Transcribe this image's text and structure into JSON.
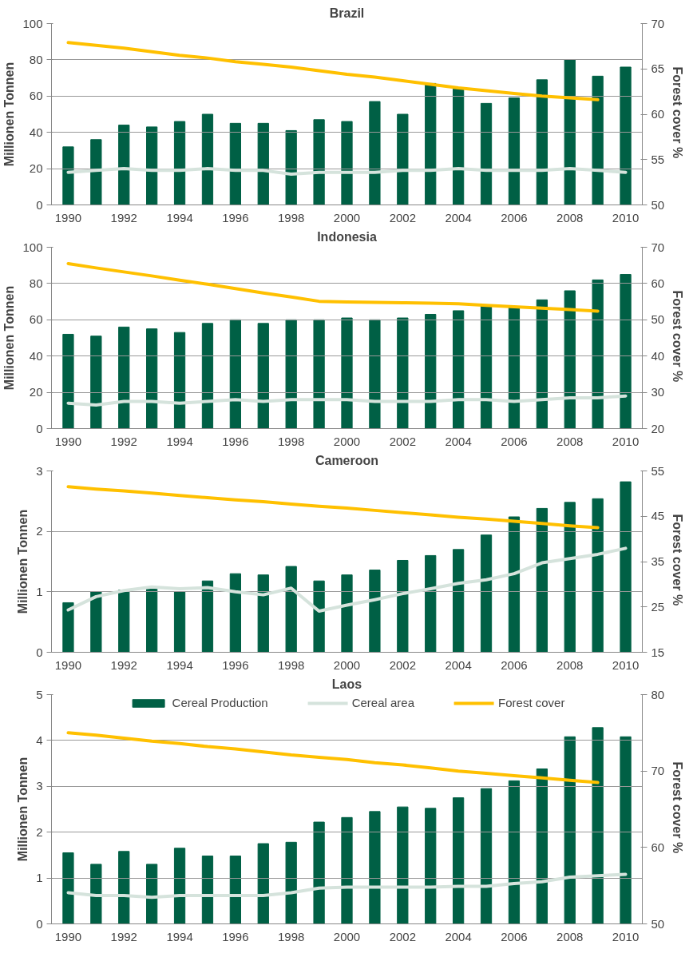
{
  "chart_data": [
    {
      "type": "bar",
      "title": "Brazil",
      "ylabel": "Millionen Tonnen",
      "y2label": "Forest  cover %",
      "categories": [
        "1990",
        null,
        "1992",
        null,
        "1994",
        null,
        "1996",
        null,
        "1998",
        null,
        "2000",
        null,
        "2002",
        null,
        "2004",
        null,
        "2006",
        null,
        "2008",
        null,
        "2010"
      ],
      "series": [
        {
          "color": "#006045",
          "values": [
            32,
            36,
            44,
            43,
            46,
            50,
            45,
            45,
            41,
            47,
            46,
            57,
            50,
            67,
            64,
            56,
            59,
            69,
            80,
            71,
            76
          ]
        },
        {
          "type": "line",
          "color": "#d5e3dc",
          "values": [
            18,
            19,
            20,
            19,
            19,
            20,
            19,
            19,
            17,
            18,
            18,
            18,
            19,
            19,
            20,
            19,
            19,
            19,
            20,
            19,
            18
          ]
        },
        {
          "type": "line",
          "color": "#ffc000",
          "axis": "y2",
          "values": [
            67.9,
            67.6,
            67.3,
            66.9,
            66.5,
            66.2,
            65.8,
            65.5,
            65.2,
            64.8,
            64.4,
            64.1,
            63.7,
            63.3,
            62.9,
            62.6,
            62.3,
            62.0,
            61.8,
            61.6,
            null
          ]
        }
      ],
      "ylim": [
        0,
        100
      ],
      "yticks": [
        0,
        20,
        40,
        60,
        80,
        100
      ],
      "y2lim": [
        50,
        70
      ],
      "y2ticks": [
        50,
        55,
        60,
        65,
        70
      ],
      "grid": "y",
      "legend": false
    },
    {
      "type": "bar",
      "title": "Indonesia",
      "ylabel": "Millionen Tonnen",
      "y2label": "Forest  cover %",
      "categories": [
        "1990",
        null,
        "1992",
        null,
        "1994",
        null,
        "1996",
        null,
        "1998",
        null,
        "2000",
        null,
        "2002",
        null,
        "2004",
        null,
        "2006",
        null,
        "2008",
        null,
        "2010"
      ],
      "series": [
        {
          "color": "#006045",
          "values": [
            52,
            51,
            56,
            55,
            53,
            58,
            60,
            58,
            60,
            60,
            61,
            60,
            61,
            63,
            65,
            68,
            67,
            71,
            76,
            82,
            85
          ]
        },
        {
          "type": "line",
          "color": "#d5e3dc",
          "values": [
            14,
            13,
            15,
            15,
            14,
            15,
            16,
            15,
            16,
            16,
            16,
            15,
            15,
            15,
            16,
            16,
            15,
            16,
            17,
            17,
            18
          ]
        },
        {
          "type": "line",
          "color": "#ffc000",
          "axis": "y2",
          "values": [
            65.5,
            64.3,
            63.2,
            62.1,
            60.9,
            59.8,
            58.6,
            57.4,
            56.3,
            55.1,
            54.9,
            54.8,
            54.7,
            54.6,
            54.4,
            54.0,
            53.6,
            53.2,
            52.8,
            52.4,
            null
          ]
        }
      ],
      "ylim": [
        0,
        100
      ],
      "yticks": [
        0,
        20,
        40,
        60,
        80,
        100
      ],
      "y2lim": [
        20,
        70
      ],
      "y2ticks": [
        20,
        30,
        40,
        50,
        60,
        70
      ],
      "grid": "y",
      "legend": false
    },
    {
      "type": "bar",
      "title": "Cameroon",
      "ylabel": "Millionen Tonnen",
      "y2label": "Forest  cover %",
      "categories": [
        "1990",
        null,
        "1992",
        null,
        "1994",
        null,
        "1996",
        null,
        "1998",
        null,
        "2000",
        null,
        "2002",
        null,
        "2004",
        null,
        "2006",
        null,
        "2008",
        null,
        "2010"
      ],
      "series": [
        {
          "color": "#006045",
          "values": [
            0.82,
            1.0,
            1.03,
            1.05,
            1.0,
            1.18,
            1.3,
            1.28,
            1.42,
            1.18,
            1.28,
            1.36,
            1.52,
            1.6,
            1.7,
            1.94,
            2.24,
            2.38,
            2.48,
            2.54,
            2.82
          ]
        },
        {
          "type": "line",
          "color": "#d5e3dc",
          "values": [
            0.7,
            0.92,
            1.02,
            1.08,
            1.05,
            1.07,
            1.0,
            0.95,
            1.06,
            0.68,
            0.78,
            0.87,
            0.97,
            1.05,
            1.14,
            1.2,
            1.3,
            1.48,
            1.55,
            1.62,
            1.72
          ]
        },
        {
          "type": "line",
          "color": "#ffc000",
          "axis": "y2",
          "values": [
            51.5,
            51.0,
            50.6,
            50.1,
            49.6,
            49.1,
            48.6,
            48.2,
            47.7,
            47.2,
            46.8,
            46.3,
            45.8,
            45.3,
            44.8,
            44.4,
            43.9,
            43.4,
            42.9,
            42.5,
            null
          ]
        }
      ],
      "ylim": [
        0,
        3
      ],
      "yticks": [
        0,
        1,
        2,
        3
      ],
      "y2lim": [
        15,
        55
      ],
      "y2ticks": [
        15,
        25,
        35,
        45,
        55
      ],
      "grid": "y",
      "legend": false
    },
    {
      "type": "bar",
      "title": "Laos",
      "ylabel": "Millionen Tonnen",
      "y2label": "Forest  cover %",
      "categories": [
        "1990",
        null,
        "1992",
        null,
        "1994",
        null,
        "1996",
        null,
        "1998",
        null,
        "2000",
        null,
        "2002",
        null,
        "2004",
        null,
        "2006",
        null,
        "2008",
        null,
        "2010"
      ],
      "series": [
        {
          "name": "Cereal Production",
          "color": "#006045",
          "values": [
            1.55,
            1.3,
            1.58,
            1.3,
            1.65,
            1.48,
            1.48,
            1.75,
            1.78,
            2.22,
            2.32,
            2.45,
            2.55,
            2.52,
            2.75,
            2.95,
            3.12,
            3.38,
            4.08,
            4.28,
            4.08
          ]
        },
        {
          "type": "line",
          "name": "Cereal area",
          "color": "#d5e3dc",
          "values": [
            0.68,
            0.62,
            0.62,
            0.58,
            0.62,
            0.62,
            0.62,
            0.62,
            0.68,
            0.78,
            0.8,
            0.8,
            0.8,
            0.8,
            0.82,
            0.82,
            0.88,
            0.92,
            1.02,
            1.05,
            1.08
          ]
        },
        {
          "type": "line",
          "name": "Forest cover",
          "color": "#ffc000",
          "axis": "y2",
          "values": [
            75,
            74.7,
            74.3,
            73.9,
            73.6,
            73.2,
            72.9,
            72.5,
            72.1,
            71.8,
            71.5,
            71.1,
            70.8,
            70.4,
            70.0,
            69.7,
            69.4,
            69.1,
            68.8,
            68.5,
            null
          ]
        }
      ],
      "ylim": [
        0,
        5
      ],
      "yticks": [
        0,
        1,
        2,
        3,
        4,
        5
      ],
      "y2lim": [
        50,
        80
      ],
      "y2ticks": [
        50,
        60,
        70,
        80
      ],
      "grid": "y",
      "legend": "top"
    }
  ]
}
